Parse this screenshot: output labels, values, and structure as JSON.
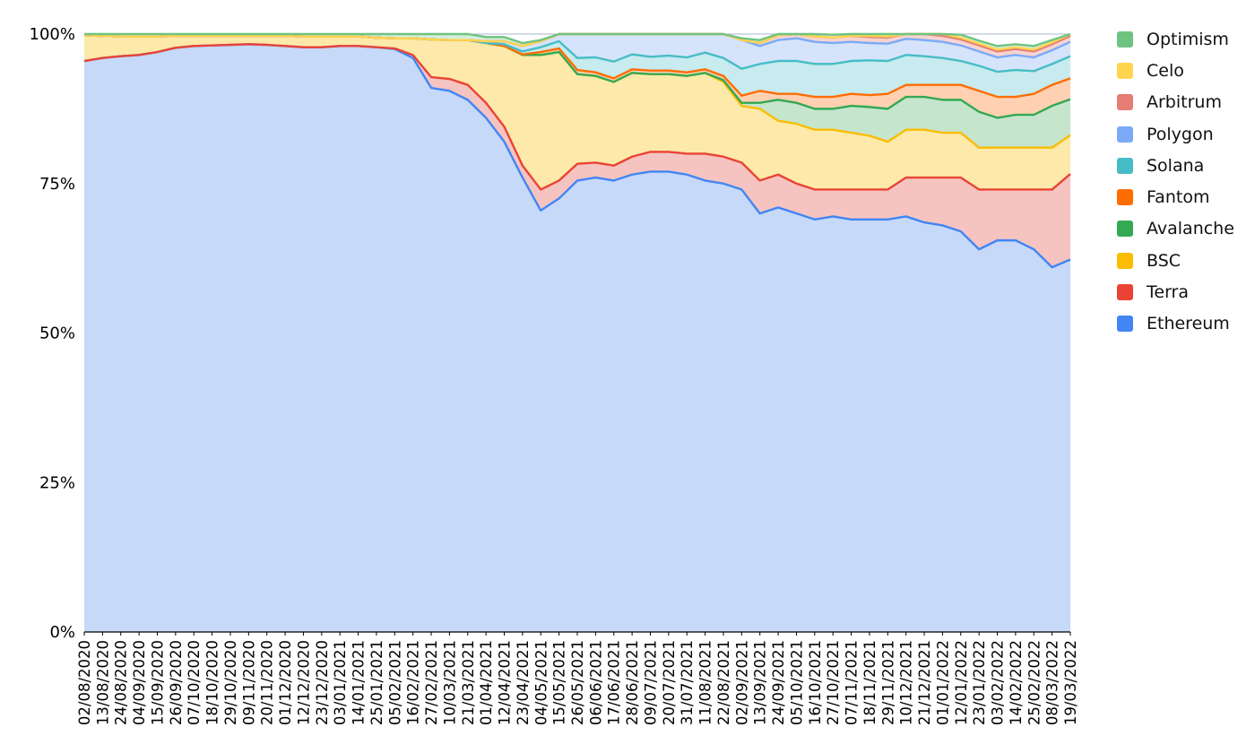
{
  "chart_data": {
    "type": "area",
    "stacked": true,
    "normalized": true,
    "title": "",
    "xlabel": "",
    "ylabel": "",
    "ylim": [
      0,
      100
    ],
    "y_ticks": [
      "0%",
      "25%",
      "50%",
      "75%",
      "100%"
    ],
    "grid": "horizontal",
    "legend_position": "right",
    "x_tick_labels": [
      "02/08/2020",
      "13/08/2020",
      "24/08/2020",
      "04/09/2020",
      "15/09/2020",
      "26/09/2020",
      "07/10/2020",
      "18/10/2020",
      "29/10/2020",
      "09/11/2020",
      "20/11/2020",
      "01/12/2020",
      "12/12/2020",
      "23/12/2020",
      "03/01/2021",
      "14/01/2021",
      "25/01/2021",
      "05/02/2021",
      "16/02/2021",
      "27/02/2021",
      "10/03/2021",
      "21/03/2021",
      "01/04/2021",
      "12/04/2021",
      "23/04/2021",
      "04/05/2021",
      "15/05/2021",
      "26/05/2021",
      "06/06/2021",
      "17/06/2021",
      "28/06/2021",
      "09/07/2021",
      "20/07/2021",
      "31/07/2021",
      "11/08/2021",
      "22/08/2021",
      "02/09/2021",
      "13/09/2021",
      "24/09/2021",
      "05/10/2021",
      "16/10/2021",
      "27/10/2021",
      "07/11/2021",
      "18/11/2021",
      "29/11/2021",
      "10/12/2021",
      "21/12/2021",
      "01/01/2022",
      "12/01/2022",
      "23/01/2022",
      "03/02/2022",
      "14/02/2022",
      "25/02/2022",
      "08/03/2022",
      "19/03/2022"
    ],
    "x": [
      "02/08/2020",
      "13/08/2020",
      "24/08/2020",
      "04/09/2020",
      "15/09/2020",
      "26/09/2020",
      "07/10/2020",
      "18/10/2020",
      "29/10/2020",
      "09/11/2020",
      "20/11/2020",
      "01/12/2020",
      "12/12/2020",
      "23/12/2020",
      "03/01/2021",
      "14/01/2021",
      "25/01/2021",
      "05/02/2021",
      "16/02/2021",
      "27/02/2021",
      "10/03/2021",
      "21/03/2021",
      "01/04/2021",
      "12/04/2021",
      "23/04/2021",
      "04/05/2021",
      "15/05/2021",
      "26/05/2021",
      "06/06/2021",
      "17/06/2021",
      "28/06/2021",
      "09/07/2021",
      "20/07/2021",
      "31/07/2021",
      "11/08/2021",
      "22/08/2021",
      "02/09/2021",
      "13/09/2021",
      "24/09/2021",
      "05/10/2021",
      "16/10/2021",
      "27/10/2021",
      "07/11/2021",
      "18/11/2021",
      "29/11/2021",
      "10/12/2021",
      "21/12/2021",
      "01/01/2022",
      "12/01/2022",
      "23/01/2022",
      "03/02/2022",
      "14/02/2022",
      "25/02/2022",
      "08/03/2022",
      "19/03/2022"
    ],
    "series": [
      {
        "name": "Ethereum",
        "color": "#4285f4",
        "fill": "#c6d9f8",
        "values": [
          95.5,
          96,
          96.3,
          96.5,
          97,
          97.7,
          98,
          98.1,
          98.2,
          98.3,
          98.2,
          98,
          97.8,
          97.8,
          98,
          98,
          97.8,
          97.5,
          96,
          91,
          90.5,
          89,
          86,
          82,
          76,
          70.5,
          72.5,
          75.5,
          76,
          75.5,
          76.5,
          77,
          77,
          76.5,
          75.5,
          75,
          74,
          70,
          71,
          70,
          69,
          69.5,
          69,
          69,
          69,
          69.5,
          68.5,
          68,
          67,
          64,
          65.5,
          65.5,
          64,
          61,
          62.3
        ]
      },
      {
        "name": "Terra",
        "color": "#ea4335",
        "fill": "#f5c4c1",
        "values": [
          0,
          0,
          0,
          0,
          0,
          0,
          0,
          0,
          0,
          0,
          0,
          0,
          0,
          0,
          0,
          0,
          0,
          0.1,
          0.5,
          1.8,
          2,
          2.5,
          2.5,
          2.5,
          2,
          3.5,
          3,
          2.8,
          2.5,
          2.5,
          3,
          3.3,
          3.3,
          3.5,
          4.5,
          4.5,
          4.5,
          5.5,
          5.5,
          5,
          5,
          4.5,
          5,
          5,
          5,
          6.5,
          7.5,
          8,
          9,
          10,
          8.5,
          8.5,
          10,
          13,
          14.3
        ]
      },
      {
        "name": "BSC",
        "color": "#fbbc04",
        "fill": "#fde9a9",
        "values": [
          4.3,
          3.7,
          3.3,
          3.1,
          2.6,
          2.0,
          1.7,
          1.6,
          1.5,
          1.4,
          1.5,
          1.7,
          1.8,
          1.8,
          1.6,
          1.6,
          1.6,
          1.7,
          2.8,
          6.3,
          6.5,
          7.5,
          10,
          13.5,
          18.5,
          22.5,
          21.5,
          15,
          14.5,
          14,
          14,
          13,
          13,
          13,
          13.5,
          12.5,
          9.5,
          12,
          9,
          10,
          10,
          10,
          9.5,
          9,
          8,
          8,
          8,
          7.5,
          7.5,
          7,
          7,
          7,
          7,
          7,
          6.5
        ]
      },
      {
        "name": "Avalanche",
        "color": "#34a853",
        "fill": "#c5e5cd",
        "values": [
          0,
          0,
          0,
          0,
          0,
          0,
          0,
          0,
          0,
          0,
          0,
          0,
          0,
          0,
          0,
          0,
          0,
          0,
          0,
          0,
          0,
          0,
          0,
          0,
          0,
          0,
          0,
          0,
          0,
          0,
          0,
          0,
          0,
          0,
          0,
          0.3,
          0.5,
          1,
          3.5,
          3.5,
          3.5,
          3.5,
          4.5,
          4.8,
          5.5,
          5.5,
          5.5,
          5.5,
          5.5,
          6,
          5,
          5.5,
          5.5,
          7,
          6
        ]
      },
      {
        "name": "Fantom",
        "color": "#ff6d01",
        "fill": "#ffd1b2",
        "values": [
          0,
          0,
          0,
          0,
          0,
          0,
          0,
          0,
          0,
          0,
          0,
          0,
          0,
          0,
          0,
          0,
          0,
          0,
          0,
          0,
          0,
          0,
          0,
          0,
          0.1,
          0.5,
          0.6,
          0.7,
          0.6,
          0.6,
          0.6,
          0.6,
          0.6,
          0.6,
          0.6,
          0.7,
          1.2,
          2,
          1,
          1.5,
          2,
          2,
          2,
          2,
          2.5,
          2,
          2,
          2.5,
          2.5,
          3.5,
          3.5,
          3,
          3.5,
          3.5,
          3.5
        ]
      },
      {
        "name": "Solana",
        "color": "#46bdc6",
        "fill": "#c7ebee",
        "values": [
          0,
          0,
          0,
          0,
          0,
          0,
          0,
          0,
          0,
          0,
          0,
          0,
          0,
          0,
          0,
          0,
          0,
          0,
          0,
          0,
          0,
          0,
          0,
          0.3,
          0.5,
          0.8,
          1.2,
          2,
          2.5,
          2.8,
          2.5,
          2.3,
          2.5,
          2.5,
          2.8,
          3,
          4.5,
          4.5,
          5.5,
          5.5,
          5.5,
          5.5,
          5.5,
          5.8,
          5.5,
          5,
          4.8,
          4.5,
          4,
          4.2,
          4.2,
          4.5,
          3.8,
          3.5,
          3.7
        ]
      },
      {
        "name": "Polygon",
        "color": "#7baaf7",
        "fill": "#d6e4fb",
        "values": [
          0,
          0,
          0,
          0,
          0,
          0,
          0,
          0,
          0,
          0,
          0,
          0,
          0,
          0,
          0,
          0,
          0,
          0,
          0,
          0,
          0,
          0,
          0.3,
          0.5,
          0.9,
          1,
          1.4,
          4,
          4.4,
          5.3,
          4.7,
          4.6,
          4.5,
          4.7,
          3.9,
          4,
          4.8,
          3,
          3.5,
          3.8,
          3.7,
          3.5,
          3.2,
          2.9,
          2.9,
          2.7,
          2.7,
          2.7,
          2.6,
          2.4,
          2.4,
          2.5,
          2.3,
          2.3,
          2.4
        ]
      },
      {
        "name": "Arbitrum",
        "color": "#e67c73",
        "fill": "#f6d4d1",
        "values": [
          0,
          0,
          0,
          0,
          0,
          0,
          0,
          0,
          0,
          0,
          0,
          0,
          0,
          0,
          0,
          0,
          0,
          0,
          0,
          0,
          0,
          0,
          0,
          0,
          0,
          0,
          0,
          0,
          0,
          0,
          0,
          0,
          0,
          0,
          0,
          0,
          0,
          0.5,
          0.8,
          0.8,
          0.9,
          0.9,
          1,
          1,
          1,
          1,
          1,
          1,
          1,
          1,
          1,
          1,
          1,
          1,
          1
        ]
      },
      {
        "name": "Celo",
        "color": "#ffd54f",
        "fill": "#fff3cc",
        "values": [
          0,
          0,
          0,
          0,
          0,
          0,
          0,
          0,
          0,
          0,
          0,
          0,
          0,
          0,
          0,
          0,
          0,
          0,
          0,
          0,
          0,
          0,
          0,
          0,
          0,
          0,
          0,
          0,
          0,
          0,
          0,
          0,
          0,
          0,
          0,
          0,
          0,
          0,
          0,
          0,
          0,
          0,
          0,
          0.2,
          0.2,
          0.3,
          0.3,
          0.3,
          0.3,
          0.3,
          0.3,
          0.3,
          0.3,
          0.3,
          0.3
        ]
      },
      {
        "name": "Optimism",
        "color": "#6fc381",
        "fill": "#d5eedb",
        "values": [
          0.2,
          0.3,
          0.4,
          0.4,
          0.4,
          0.3,
          0.3,
          0.3,
          0.3,
          0.3,
          0.3,
          0.3,
          0.4,
          0.4,
          0.4,
          0.4,
          0.6,
          0.7,
          0.7,
          0.9,
          1,
          1,
          0.7,
          0.7,
          0.5,
          0.2,
          0.3,
          0.3,
          0.3,
          0.3,
          0.3,
          0.3,
          0.3,
          0.2,
          0.3,
          0.3,
          0.3,
          0.5,
          0.5,
          0.5,
          0.5,
          0.5,
          0.5,
          0.5,
          0.5,
          0.5,
          0.5,
          0.5,
          0.5,
          0.5,
          0.6,
          0.5,
          0.6,
          0.4,
          0.3
        ]
      }
    ],
    "legend_order": [
      "Optimism",
      "Celo",
      "Arbitrum",
      "Polygon",
      "Solana",
      "Fantom",
      "Avalanche",
      "BSC",
      "Terra",
      "Ethereum"
    ]
  }
}
